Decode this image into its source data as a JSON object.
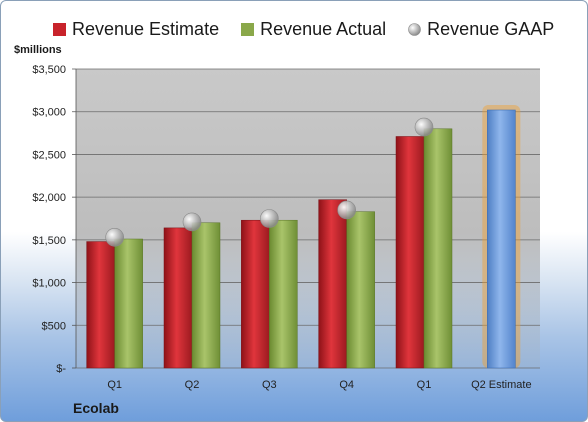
{
  "legend": {
    "estimate": "Revenue Estimate",
    "actual": "Revenue Actual",
    "gaap": "Revenue GAAP"
  },
  "unit_label": "$millions",
  "company": "Ecolab",
  "colors": {
    "estimate": "#c8232b",
    "actual": "#8aa84a",
    "gaap": "#a8a8a8",
    "forecast": "#6e9bdc",
    "forecast_glow": "#f0a030",
    "plot_bg": "#bfbfbf"
  },
  "chart_data": {
    "type": "bar",
    "categories": [
      "Q1",
      "Q2",
      "Q3",
      "Q4",
      "Q1",
      "Q2 Estimate"
    ],
    "series": [
      {
        "name": "Revenue Estimate",
        "values": [
          1480,
          1640,
          1730,
          1970,
          2710,
          3020
        ]
      },
      {
        "name": "Revenue Actual",
        "values": [
          1510,
          1700,
          1730,
          1830,
          2800,
          null
        ]
      },
      {
        "name": "Revenue GAAP",
        "values": [
          1530,
          1710,
          1750,
          1850,
          2820,
          null
        ]
      }
    ],
    "ylabel": "$millions",
    "ylim": [
      0,
      3500
    ],
    "yticks": [
      0,
      500,
      1000,
      1500,
      2000,
      2500,
      3000,
      3500
    ],
    "ytick_labels": [
      "$-",
      "$500",
      "$1,000",
      "$1,500",
      "$2,000",
      "$2,500",
      "$3,000",
      "$3,500"
    ],
    "grid": true,
    "legend_position": "top"
  }
}
